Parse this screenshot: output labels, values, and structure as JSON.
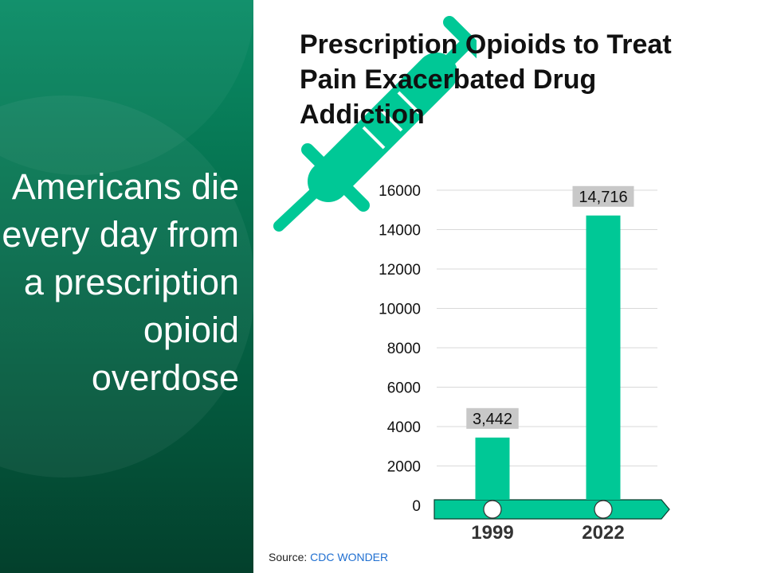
{
  "headline": "Americans die every day from a prescription opioid overdose",
  "title": "Prescription Opioids to Treat Pain Exacerbated Drug Addiction",
  "source": {
    "prefix": "Source:",
    "link": "CDC WONDER"
  },
  "colors": {
    "bar": "#00c896",
    "panel": "#067552",
    "label_bg": "#c8c8c8",
    "link": "#1f6fd1"
  },
  "chart_data": {
    "type": "bar",
    "categories": [
      "1999",
      "2022"
    ],
    "values": [
      3442,
      14716
    ],
    "data_labels": [
      "3,442",
      "14,716"
    ],
    "yticks": [
      "0",
      "2000",
      "4000",
      "6000",
      "8000",
      "10000",
      "12000",
      "14000",
      "16000"
    ],
    "ylim": [
      0,
      16000
    ],
    "title": "Prescription Opioids to Treat Pain Exacerbated Drug Addiction",
    "xlabel": "",
    "ylabel": "",
    "grid": true
  }
}
